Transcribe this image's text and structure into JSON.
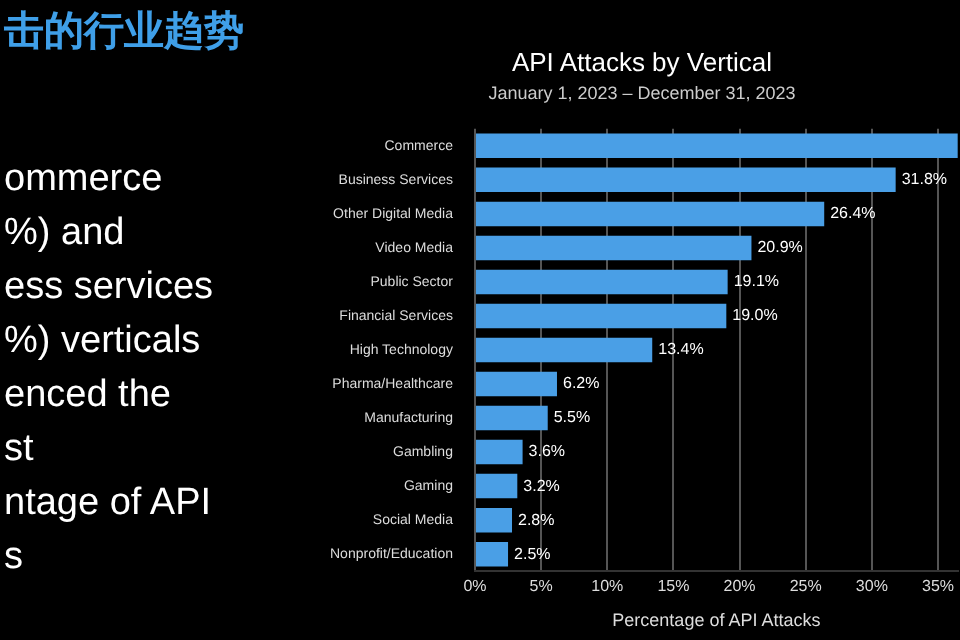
{
  "chart_data": {
    "type": "bar",
    "orientation": "horizontal",
    "title": "API Attacks by Vertical",
    "subtitle": "January 1, 2023 – December 31, 2023",
    "xlabel": "Percentage of API Attacks",
    "categories": [
      "Commerce",
      "Business Services",
      "Other Digital Media",
      "Video Media",
      "Public Sector",
      "Financial Services",
      "High Technology",
      "Pharma/Healthcare",
      "Manufacturing",
      "Gambling",
      "Gaming",
      "Social Media",
      "Nonprofit/Education"
    ],
    "values": [
      36.5,
      31.8,
      26.4,
      20.9,
      19.1,
      19.0,
      13.4,
      6.2,
      5.5,
      3.6,
      3.2,
      2.8,
      2.5
    ],
    "value_labels": [
      null,
      "31.8%",
      "26.4%",
      "20.9%",
      "19.1%",
      "19.0%",
      "13.4%",
      "6.2%",
      "5.5%",
      "3.6%",
      "3.2%",
      "2.8%",
      "2.5%"
    ],
    "color": "#4a9fe6",
    "xlim": [
      0,
      36.5
    ],
    "xticks": [
      {
        "value": 0,
        "label": "0%"
      },
      {
        "value": 5,
        "label": "5%"
      },
      {
        "value": 10,
        "label": "10%"
      },
      {
        "value": 15,
        "label": "15%"
      },
      {
        "value": 20,
        "label": "20%"
      },
      {
        "value": 25,
        "label": "25%"
      },
      {
        "value": 30,
        "label": "30%"
      },
      {
        "value": 35,
        "label": "35%"
      }
    ],
    "grid": "x",
    "annotations": [
      "击的行业趋势",
      "ommerce",
      "%) and",
      "ess services",
      "%) verticals",
      "enced the",
      "st",
      "ntage of API",
      "s"
    ]
  }
}
